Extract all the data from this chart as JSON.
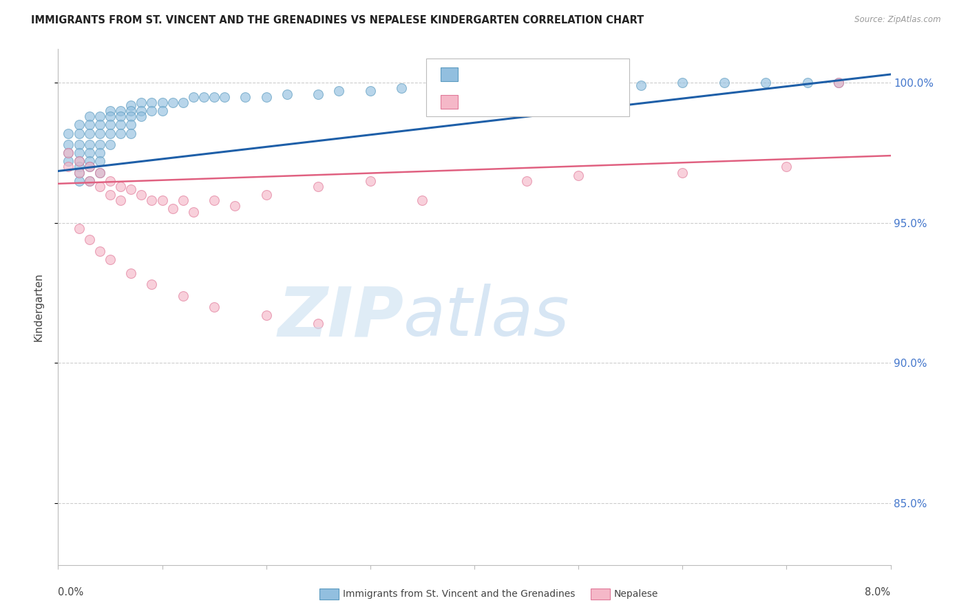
{
  "title": "IMMIGRANTS FROM ST. VINCENT AND THE GRENADINES VS NEPALESE KINDERGARTEN CORRELATION CHART",
  "source": "Source: ZipAtlas.com",
  "ylabel": "Kindergarten",
  "ytick_values": [
    0.85,
    0.9,
    0.95,
    1.0
  ],
  "ytick_labels": [
    "85.0%",
    "90.0%",
    "95.0%",
    "100.0%"
  ],
  "xlim": [
    0.0,
    0.08
  ],
  "ylim": [
    0.828,
    1.012
  ],
  "blue_color": "#92bfdf",
  "blue_edge_color": "#5a9abf",
  "pink_color": "#f5b8c8",
  "pink_edge_color": "#e07898",
  "blue_line_color": "#1e5fa8",
  "pink_line_color": "#e06080",
  "legend_R_color": "#5599dd",
  "legend_N_color": "#ee4444",
  "watermark_ZIP_color": "#c5ddf0",
  "watermark_atlas_color": "#a8c8e8",
  "blue_line_x": [
    0.0,
    0.08
  ],
  "blue_line_y": [
    0.9685,
    1.003
  ],
  "pink_line_x": [
    0.0,
    0.08
  ],
  "pink_line_y": [
    0.964,
    0.974
  ],
  "blue_pts_x": [
    0.001,
    0.001,
    0.001,
    0.001,
    0.002,
    0.002,
    0.002,
    0.002,
    0.002,
    0.002,
    0.002,
    0.002,
    0.003,
    0.003,
    0.003,
    0.003,
    0.003,
    0.003,
    0.003,
    0.003,
    0.004,
    0.004,
    0.004,
    0.004,
    0.004,
    0.004,
    0.004,
    0.005,
    0.005,
    0.005,
    0.005,
    0.005,
    0.006,
    0.006,
    0.006,
    0.006,
    0.007,
    0.007,
    0.007,
    0.007,
    0.007,
    0.008,
    0.008,
    0.008,
    0.009,
    0.009,
    0.01,
    0.01,
    0.011,
    0.012,
    0.013,
    0.014,
    0.015,
    0.016,
    0.018,
    0.02,
    0.022,
    0.025,
    0.027,
    0.03,
    0.033,
    0.036,
    0.04,
    0.044,
    0.048,
    0.052,
    0.056,
    0.06,
    0.064,
    0.068,
    0.072,
    0.075
  ],
  "blue_pts_y": [
    0.982,
    0.978,
    0.975,
    0.972,
    0.985,
    0.982,
    0.978,
    0.975,
    0.972,
    0.97,
    0.968,
    0.965,
    0.988,
    0.985,
    0.982,
    0.978,
    0.975,
    0.972,
    0.97,
    0.965,
    0.988,
    0.985,
    0.982,
    0.978,
    0.975,
    0.972,
    0.968,
    0.99,
    0.988,
    0.985,
    0.982,
    0.978,
    0.99,
    0.988,
    0.985,
    0.982,
    0.992,
    0.99,
    0.988,
    0.985,
    0.982,
    0.993,
    0.99,
    0.988,
    0.993,
    0.99,
    0.993,
    0.99,
    0.993,
    0.993,
    0.995,
    0.995,
    0.995,
    0.995,
    0.995,
    0.995,
    0.996,
    0.996,
    0.997,
    0.997,
    0.998,
    0.998,
    0.998,
    0.999,
    0.999,
    0.999,
    0.999,
    1.0,
    1.0,
    1.0,
    1.0,
    1.0
  ],
  "pink_pts_x": [
    0.001,
    0.001,
    0.002,
    0.002,
    0.003,
    0.003,
    0.004,
    0.004,
    0.005,
    0.005,
    0.006,
    0.006,
    0.007,
    0.008,
    0.009,
    0.01,
    0.011,
    0.012,
    0.013,
    0.015,
    0.017,
    0.02,
    0.025,
    0.03,
    0.002,
    0.003,
    0.004,
    0.005,
    0.007,
    0.009,
    0.012,
    0.015,
    0.02,
    0.025,
    0.035,
    0.045,
    0.05,
    0.06,
    0.07,
    0.075
  ],
  "pink_pts_y": [
    0.975,
    0.97,
    0.972,
    0.968,
    0.97,
    0.965,
    0.968,
    0.963,
    0.965,
    0.96,
    0.963,
    0.958,
    0.962,
    0.96,
    0.958,
    0.958,
    0.955,
    0.958,
    0.954,
    0.958,
    0.956,
    0.96,
    0.963,
    0.965,
    0.948,
    0.944,
    0.94,
    0.937,
    0.932,
    0.928,
    0.924,
    0.92,
    0.917,
    0.914,
    0.958,
    0.965,
    0.967,
    0.968,
    0.97,
    1.0
  ]
}
